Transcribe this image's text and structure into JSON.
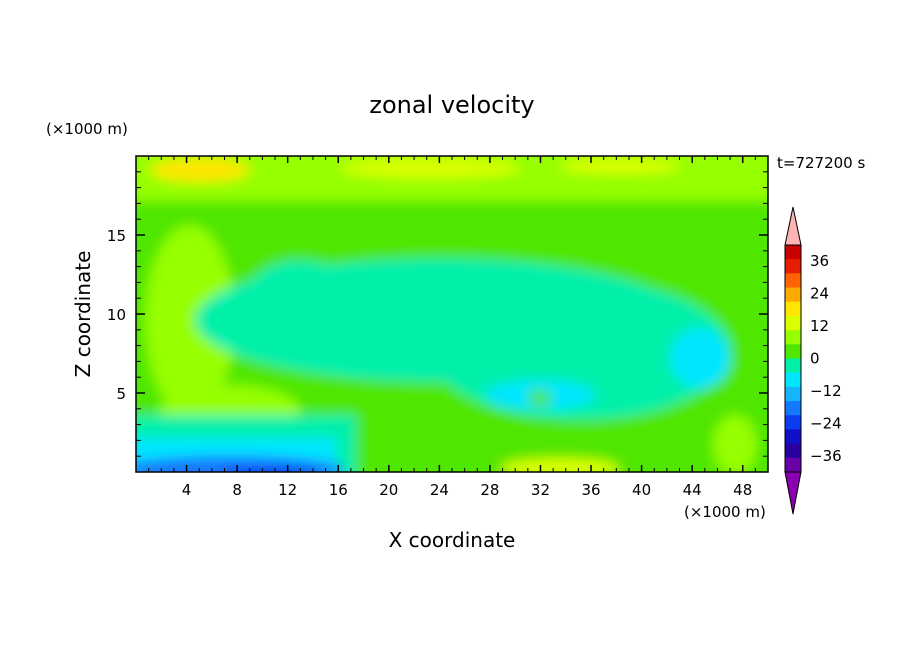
{
  "chart_data": {
    "type": "heatmap",
    "title": "zonal velocity",
    "xlabel": "X coordinate",
    "ylabel": "Z coordinate",
    "x_unit": "(×1000 m)",
    "y_unit": "(×1000 m)",
    "time_label": "t=727200 s",
    "xlim": [
      0,
      50
    ],
    "ylim": [
      0,
      20
    ],
    "xticks": [
      4,
      8,
      12,
      16,
      20,
      24,
      28,
      32,
      36,
      40,
      44,
      48
    ],
    "yticks": [
      5,
      10,
      15
    ],
    "colorbar": {
      "labels": [
        36,
        24,
        12,
        0,
        -12,
        -24,
        -36
      ],
      "levels": [
        -42,
        -36,
        -30,
        -24,
        -18,
        -12,
        -6,
        0,
        6,
        12,
        18,
        24,
        30,
        36,
        42
      ],
      "colors": [
        "#6a00a8",
        "#2800a0",
        "#1010c8",
        "#0a3cf0",
        "#1478ff",
        "#14b4ff",
        "#00e6ff",
        "#00f0aa",
        "#50e600",
        "#96ff00",
        "#dcff00",
        "#ffe600",
        "#ffaa00",
        "#ff6400",
        "#e61e00",
        "#c80000"
      ],
      "extend_low_color": "#8a00b0",
      "extend_high_color": "#ffb4b4"
    }
  }
}
